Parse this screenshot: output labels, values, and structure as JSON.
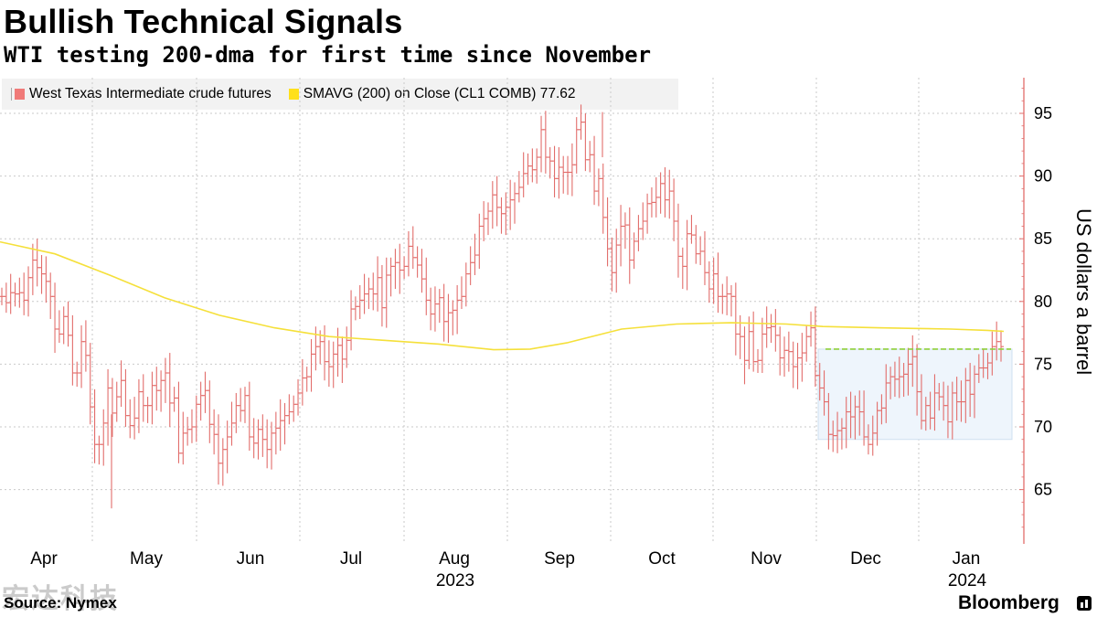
{
  "header": {
    "title": "Bullish Technical Signals",
    "subtitle": "WTI testing 200-dma for first time since November"
  },
  "legend": {
    "entries": [
      {
        "label": "West Texas Intermediate crude futures",
        "color": "#f07a78"
      },
      {
        "label": "SMAVG (200)  on Close (CL1 COMB) 77.62",
        "color": "#ffe01a"
      }
    ]
  },
  "footer": {
    "source": "Source: Nymex",
    "brand": "Bloomberg",
    "watermark": "宏达科技"
  },
  "chart_data": {
    "type": "line",
    "y_axis": {
      "label": "US dollars a barrel",
      "range": [
        61,
        98
      ],
      "ticks": [
        65,
        70,
        75,
        80,
        85,
        90,
        95
      ],
      "position": "right"
    },
    "x_axis": {
      "months": [
        "Apr",
        "May",
        "Jun",
        "Jul",
        "Aug",
        "Sep",
        "Oct",
        "Nov",
        "Dec",
        "Jan"
      ],
      "years": [
        "2023",
        "2024"
      ]
    },
    "grid": true,
    "series_close": [
      80.4,
      79.9,
      80.7,
      80.6,
      80.7,
      80.1,
      81.9,
      83.3,
      82.7,
      82.2,
      81.6,
      80.4,
      77.8,
      77.4,
      78.8,
      77.3,
      74.3,
      74.3,
      76.8,
      75.7,
      71.6,
      68.6,
      68.6,
      70.3,
      73.1,
      71.1,
      72.4,
      73.7,
      70.9,
      70.1,
      70.7,
      72.8,
      71.7,
      71.7,
      73.3,
      72.9,
      73.7,
      74.3,
      71.9,
      72.3,
      67.9,
      69.5,
      69.8,
      70.0,
      71.8,
      72.5,
      72.9,
      70.2,
      69.4,
      67.1,
      68.2,
      69.2,
      70.3,
      71.7,
      71.3,
      72.5,
      69.2,
      68.7,
      69.8,
      69.0,
      68.2,
      69.5,
      69.9,
      70.5,
      70.9,
      71.2,
      71.8,
      72.7,
      73.9,
      74.0,
      75.8,
      76.4,
      76.8,
      75.2,
      74.8,
      75.8,
      76.5,
      75.4,
      76.9,
      79.4,
      79.6,
      80.1,
      80.6,
      81.0,
      80.6,
      81.9,
      79.5,
      82.1,
      82.8,
      83.1,
      82.5,
      82.8,
      84.4,
      83.5,
      82.9,
      81.8,
      80.1,
      79.0,
      79.8,
      80.3,
      78.4,
      79.1,
      79.3,
      80.1,
      80.4,
      82.2,
      83.1,
      83.7,
      86.0,
      86.6,
      87.2,
      88.5,
      87.5,
      87.0,
      87.5,
      88.1,
      88.6,
      89.1,
      90.2,
      90.8,
      90.5,
      91.5,
      93.7,
      91.5,
      91.2,
      89.8,
      90.7,
      90.3,
      90.3,
      90.9,
      93.7,
      94.3,
      91.3,
      91.7,
      88.8,
      89.8,
      86.7,
      84.2,
      82.3,
      84.5,
      86.0,
      86.1,
      83.3,
      84.8,
      85.8,
      86.4,
      87.8,
      87.9,
      88.3,
      89.4,
      88.1,
      88.8,
      86.4,
      83.6,
      82.8,
      85.4,
      85.3,
      83.8,
      84.0,
      82.3,
      81.0,
      82.2,
      80.4,
      80.4,
      80.6,
      80.4,
      77.4,
      77.2,
      75.3,
      77.6,
      75.2,
      75.3,
      77.4,
      77.9,
      78.0,
      77.3,
      75.5,
      76.1,
      76.0,
      74.8,
      75.5,
      75.9,
      77.2,
      77.9,
      74.1,
      73.1,
      72.0,
      69.4,
      69.3,
      69.7,
      69.9,
      71.2,
      70.8,
      71.6,
      71.2,
      69.2,
      68.6,
      69.5,
      71.3,
      71.5,
      73.5,
      74.0,
      73.8,
      74.0,
      74.2,
      75.0,
      75.6,
      72.8,
      70.5,
      71.7,
      70.7,
      72.7,
      72.4,
      71.7,
      70.4,
      72.7,
      72.0,
      72.0,
      73.7,
      72.6,
      74.2,
      74.7,
      74.7,
      75.1,
      76.4,
      76.8,
      76.4
    ],
    "sma200": [
      [
        0,
        84.75
      ],
      [
        60,
        83.8
      ],
      [
        120,
        82.1
      ],
      [
        180,
        80.3
      ],
      [
        240,
        78.9
      ],
      [
        300,
        77.9
      ],
      [
        360,
        77.2
      ],
      [
        420,
        76.9
      ],
      [
        480,
        76.6
      ],
      [
        540,
        76.15
      ],
      [
        580,
        76.2
      ],
      [
        620,
        76.7
      ],
      [
        680,
        77.8
      ],
      [
        740,
        78.2
      ],
      [
        800,
        78.3
      ],
      [
        860,
        78.2
      ],
      [
        900,
        78.0
      ],
      [
        960,
        77.9
      ],
      [
        1000,
        77.85
      ],
      [
        1040,
        77.8
      ],
      [
        1080,
        77.7
      ],
      [
        1098,
        77.62
      ]
    ],
    "resistance_level": 76.2,
    "range_box": {
      "from": 69.0,
      "to": 76.2
    }
  }
}
